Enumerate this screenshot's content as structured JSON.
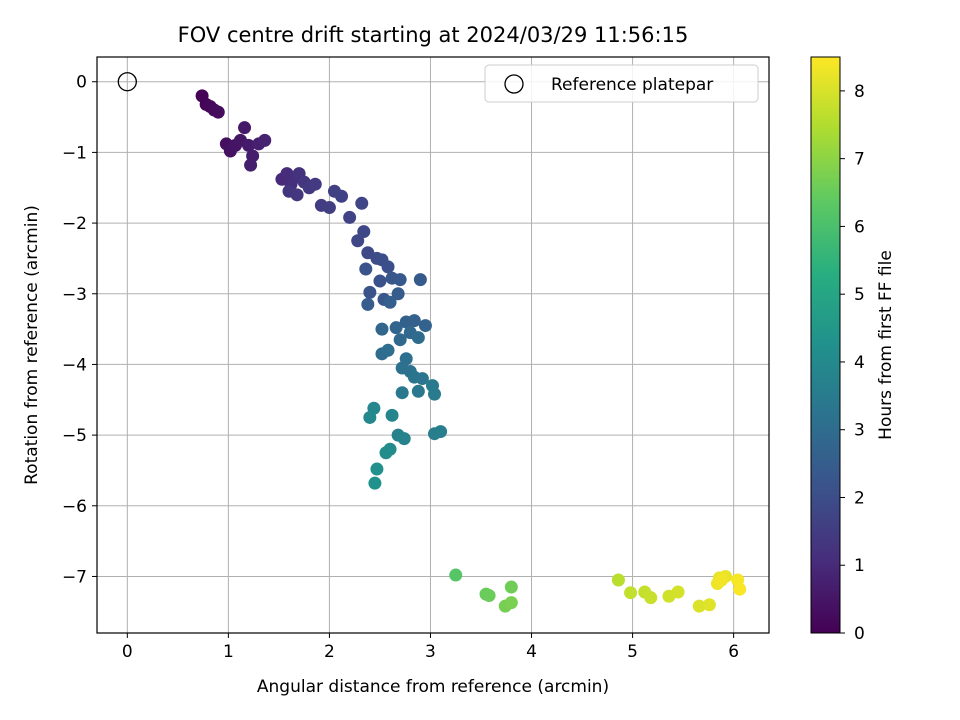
{
  "chart_data": {
    "type": "scatter",
    "title": "FOV centre drift starting at 2024/03/29 11:56:15",
    "xlabel": "Angular distance from reference (arcmin)",
    "ylabel": "Rotation from reference (arcmin)",
    "xlim": [
      -0.3,
      6.35
    ],
    "ylim": [
      -7.8,
      0.35
    ],
    "xticks": [
      0,
      1,
      2,
      3,
      4,
      5,
      6
    ],
    "yticks": [
      0,
      -1,
      -2,
      -3,
      -4,
      -5,
      -6,
      -7
    ],
    "grid": true,
    "legend": {
      "placement": "top-right",
      "entries": [
        "Reference platepar"
      ]
    },
    "reference_point": {
      "label": "Reference platepar",
      "x": 0,
      "y": 0,
      "marker": "hollow-circle"
    },
    "colorbar": {
      "label": "Hours from first FF file",
      "colormap": "viridis",
      "range": [
        0,
        8.5
      ],
      "ticks": [
        0,
        1,
        2,
        3,
        4,
        5,
        6,
        7,
        8
      ]
    },
    "series": [
      {
        "points": [
          {
            "x": 0.74,
            "y": -0.2,
            "t": 0.05
          },
          {
            "x": 0.78,
            "y": -0.32,
            "t": 0.1
          },
          {
            "x": 0.82,
            "y": -0.35,
            "t": 0.15
          },
          {
            "x": 0.86,
            "y": -0.4,
            "t": 0.2
          },
          {
            "x": 0.9,
            "y": -0.43,
            "t": 0.25
          },
          {
            "x": 0.98,
            "y": -0.88,
            "t": 0.35
          },
          {
            "x": 1.02,
            "y": -0.98,
            "t": 0.4
          },
          {
            "x": 1.07,
            "y": -0.9,
            "t": 0.45
          },
          {
            "x": 1.12,
            "y": -0.83,
            "t": 0.5
          },
          {
            "x": 1.16,
            "y": -0.65,
            "t": 0.55
          },
          {
            "x": 1.2,
            "y": -0.9,
            "t": 0.6
          },
          {
            "x": 1.24,
            "y": -1.05,
            "t": 0.65
          },
          {
            "x": 1.22,
            "y": -1.18,
            "t": 0.7
          },
          {
            "x": 1.3,
            "y": -0.88,
            "t": 0.75
          },
          {
            "x": 1.36,
            "y": -0.83,
            "t": 0.8
          },
          {
            "x": 1.53,
            "y": -1.38,
            "t": 1.0
          },
          {
            "x": 1.58,
            "y": -1.3,
            "t": 1.05
          },
          {
            "x": 1.62,
            "y": -1.45,
            "t": 1.1
          },
          {
            "x": 1.67,
            "y": -1.35,
            "t": 1.15
          },
          {
            "x": 1.7,
            "y": -1.3,
            "t": 1.2
          },
          {
            "x": 1.75,
            "y": -1.42,
            "t": 1.25
          },
          {
            "x": 1.6,
            "y": -1.55,
            "t": 1.3
          },
          {
            "x": 1.68,
            "y": -1.6,
            "t": 1.35
          },
          {
            "x": 1.8,
            "y": -1.5,
            "t": 1.4
          },
          {
            "x": 1.86,
            "y": -1.45,
            "t": 1.45
          },
          {
            "x": 1.92,
            "y": -1.75,
            "t": 1.5
          },
          {
            "x": 2.0,
            "y": -1.78,
            "t": 1.55
          },
          {
            "x": 2.05,
            "y": -1.55,
            "t": 1.6
          },
          {
            "x": 2.12,
            "y": -1.62,
            "t": 1.65
          },
          {
            "x": 2.2,
            "y": -1.92,
            "t": 1.7
          },
          {
            "x": 2.32,
            "y": -1.72,
            "t": 1.75
          },
          {
            "x": 2.28,
            "y": -2.25,
            "t": 1.8
          },
          {
            "x": 2.34,
            "y": -2.12,
            "t": 1.85
          },
          {
            "x": 2.38,
            "y": -2.42,
            "t": 1.9
          },
          {
            "x": 2.47,
            "y": -2.5,
            "t": 1.95
          },
          {
            "x": 2.52,
            "y": -2.52,
            "t": 2.0
          },
          {
            "x": 2.58,
            "y": -2.62,
            "t": 2.05
          },
          {
            "x": 2.5,
            "y": -2.82,
            "t": 2.1
          },
          {
            "x": 2.36,
            "y": -2.65,
            "t": 2.15
          },
          {
            "x": 2.4,
            "y": -2.98,
            "t": 2.2
          },
          {
            "x": 2.54,
            "y": -3.08,
            "t": 2.25
          },
          {
            "x": 2.62,
            "y": -2.78,
            "t": 2.3
          },
          {
            "x": 2.7,
            "y": -2.8,
            "t": 2.35
          },
          {
            "x": 2.9,
            "y": -2.8,
            "t": 2.4
          },
          {
            "x": 2.68,
            "y": -3.0,
            "t": 2.45
          },
          {
            "x": 2.38,
            "y": -3.15,
            "t": 2.5
          },
          {
            "x": 2.6,
            "y": -3.12,
            "t": 2.55
          },
          {
            "x": 2.76,
            "y": -3.4,
            "t": 2.6
          },
          {
            "x": 2.84,
            "y": -3.38,
            "t": 2.65
          },
          {
            "x": 2.95,
            "y": -3.45,
            "t": 2.7
          },
          {
            "x": 2.66,
            "y": -3.48,
            "t": 2.75
          },
          {
            "x": 2.52,
            "y": -3.5,
            "t": 2.8
          },
          {
            "x": 2.7,
            "y": -3.65,
            "t": 2.85
          },
          {
            "x": 2.8,
            "y": -3.55,
            "t": 2.9
          },
          {
            "x": 2.88,
            "y": -3.62,
            "t": 2.95
          },
          {
            "x": 2.52,
            "y": -3.85,
            "t": 3.0
          },
          {
            "x": 2.58,
            "y": -3.8,
            "t": 3.05
          },
          {
            "x": 2.76,
            "y": -3.92,
            "t": 3.1
          },
          {
            "x": 2.72,
            "y": -4.05,
            "t": 3.15
          },
          {
            "x": 2.8,
            "y": -4.1,
            "t": 3.2
          },
          {
            "x": 2.84,
            "y": -4.18,
            "t": 3.25
          },
          {
            "x": 2.92,
            "y": -4.2,
            "t": 3.3
          },
          {
            "x": 2.88,
            "y": -4.38,
            "t": 3.35
          },
          {
            "x": 2.72,
            "y": -4.4,
            "t": 3.4
          },
          {
            "x": 3.02,
            "y": -4.3,
            "t": 3.45
          },
          {
            "x": 3.04,
            "y": -4.42,
            "t": 3.5
          },
          {
            "x": 3.04,
            "y": -4.98,
            "t": 3.6
          },
          {
            "x": 3.1,
            "y": -4.95,
            "t": 3.65
          },
          {
            "x": 2.68,
            "y": -5.0,
            "t": 3.7
          },
          {
            "x": 2.74,
            "y": -5.05,
            "t": 3.75
          },
          {
            "x": 2.62,
            "y": -4.72,
            "t": 3.85
          },
          {
            "x": 2.44,
            "y": -4.62,
            "t": 3.9
          },
          {
            "x": 2.4,
            "y": -4.75,
            "t": 3.95
          },
          {
            "x": 2.6,
            "y": -5.2,
            "t": 4.05
          },
          {
            "x": 2.56,
            "y": -5.25,
            "t": 4.1
          },
          {
            "x": 2.47,
            "y": -5.48,
            "t": 4.2
          },
          {
            "x": 2.45,
            "y": -5.68,
            "t": 4.3
          },
          {
            "x": 3.25,
            "y": -6.98,
            "t": 6.2
          },
          {
            "x": 3.55,
            "y": -7.25,
            "t": 6.5
          },
          {
            "x": 3.58,
            "y": -7.27,
            "t": 6.55
          },
          {
            "x": 3.8,
            "y": -7.15,
            "t": 6.6
          },
          {
            "x": 3.74,
            "y": -7.42,
            "t": 6.7
          },
          {
            "x": 3.8,
            "y": -7.37,
            "t": 6.75
          },
          {
            "x": 4.86,
            "y": -7.05,
            "t": 7.6
          },
          {
            "x": 4.98,
            "y": -7.23,
            "t": 7.7
          },
          {
            "x": 5.12,
            "y": -7.22,
            "t": 7.75
          },
          {
            "x": 5.18,
            "y": -7.3,
            "t": 7.8
          },
          {
            "x": 5.36,
            "y": -7.28,
            "t": 7.9
          },
          {
            "x": 5.45,
            "y": -7.22,
            "t": 7.95
          },
          {
            "x": 5.66,
            "y": -7.42,
            "t": 8.05
          },
          {
            "x": 5.76,
            "y": -7.4,
            "t": 8.1
          },
          {
            "x": 5.86,
            "y": -7.02,
            "t": 8.2
          },
          {
            "x": 5.92,
            "y": -7.0,
            "t": 8.25
          },
          {
            "x": 5.84,
            "y": -7.1,
            "t": 8.3
          },
          {
            "x": 5.88,
            "y": -7.05,
            "t": 8.35
          },
          {
            "x": 6.04,
            "y": -7.05,
            "t": 8.4
          },
          {
            "x": 6.06,
            "y": -7.18,
            "t": 8.45
          }
        ]
      }
    ]
  }
}
